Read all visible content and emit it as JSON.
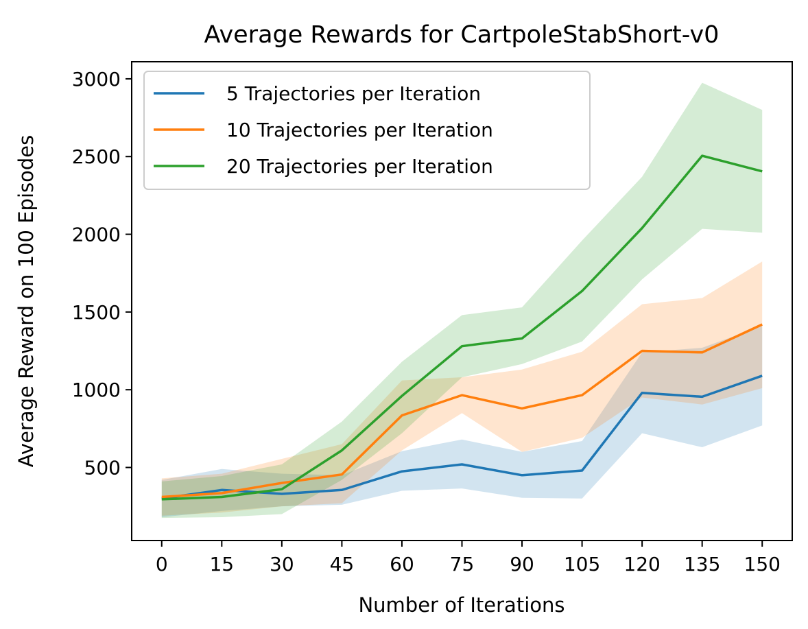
{
  "chart_data": {
    "type": "line",
    "title": "Average Rewards for CartpoleStabShort-v0",
    "xlabel": "Number of Iterations",
    "ylabel": "Average Reward on 100 Episodes",
    "x": [
      0,
      15,
      30,
      45,
      60,
      75,
      90,
      105,
      120,
      135,
      150
    ],
    "xticks": [
      "0",
      "15",
      "30",
      "45",
      "60",
      "75",
      "90",
      "105",
      "120",
      "135",
      "150"
    ],
    "yticks": [
      "500",
      "1000",
      "1500",
      "2000",
      "2500",
      "3000"
    ],
    "ytick_values": [
      500,
      1000,
      1500,
      2000,
      2500,
      3000
    ],
    "xlim": [
      -7.5,
      157.5
    ],
    "ylim": [
      30,
      3110
    ],
    "legend_position": "top-left",
    "grid": false,
    "series": [
      {
        "name": "5 Trajectories per Iteration",
        "color": "#1f77b4",
        "values": [
          300,
          355,
          330,
          355,
          475,
          520,
          450,
          480,
          980,
          955,
          1090
        ],
        "lower": [
          180,
          220,
          250,
          260,
          350,
          365,
          305,
          300,
          720,
          630,
          770
        ],
        "upper": [
          420,
          490,
          460,
          450,
          605,
          680,
          600,
          670,
          1240,
          1270,
          1410
        ]
      },
      {
        "name": "10 Trajectories per Iteration",
        "color": "#ff7f0e",
        "values": [
          310,
          335,
          400,
          455,
          835,
          965,
          880,
          965,
          1250,
          1240,
          1420
        ],
        "lower": [
          190,
          210,
          250,
          270,
          610,
          850,
          600,
          690,
          950,
          905,
          1010
        ],
        "upper": [
          430,
          460,
          555,
          650,
          1060,
          1080,
          1130,
          1245,
          1550,
          1590,
          1825
        ]
      },
      {
        "name": "20 Trajectories per Iteration",
        "color": "#2ca02c",
        "values": [
          295,
          310,
          360,
          610,
          960,
          1280,
          1330,
          1635,
          2040,
          2505,
          2405
        ],
        "lower": [
          175,
          180,
          200,
          420,
          720,
          1080,
          1165,
          1310,
          1710,
          2035,
          2010
        ],
        "upper": [
          410,
          445,
          520,
          795,
          1180,
          1480,
          1530,
          1960,
          2370,
          2975,
          2800
        ]
      }
    ]
  }
}
